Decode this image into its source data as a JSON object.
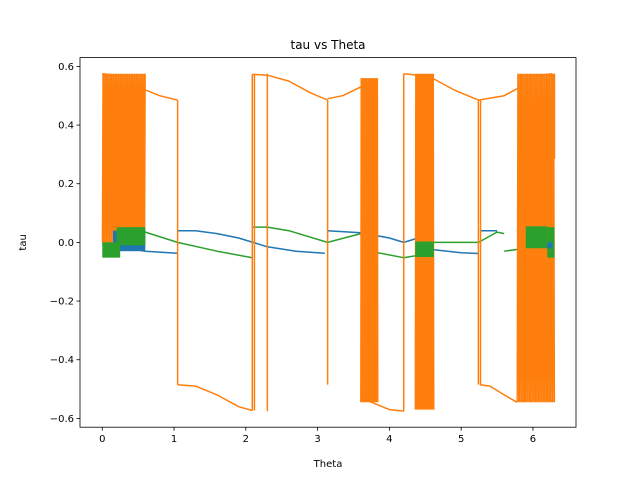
{
  "chart_data": {
    "type": "line",
    "title": "tau vs Theta",
    "xlabel": "Theta",
    "ylabel": "tau",
    "xlim": [
      -0.31,
      6.6
    ],
    "ylim": [
      -0.63,
      0.63
    ],
    "grid": false,
    "legend": "none",
    "xticks": [
      0,
      1,
      2,
      3,
      4,
      5,
      6
    ],
    "xtick_labels": [
      "0",
      "1",
      "2",
      "3",
      "4",
      "5",
      "6"
    ],
    "yticks": [
      -0.6,
      -0.4,
      -0.2,
      0.0,
      0.2,
      0.4,
      0.6
    ],
    "ytick_labels": [
      "−0.6",
      "−0.4",
      "−0.2",
      "0.0",
      "0.2",
      "0.4",
      "0.6"
    ],
    "series": [
      {
        "color": "#1f77b4",
        "segments": [
          [
            [
              0.0,
              -0.005
            ],
            [
              0.6,
              -0.03
            ],
            [
              1.05,
              -0.037
            ]
          ],
          [
            [
              1.05,
              0.04
            ],
            [
              1.3,
              0.04
            ],
            [
              1.6,
              0.03
            ],
            [
              1.9,
              0.015
            ],
            [
              2.1,
              0.0
            ],
            [
              2.3,
              -0.015
            ],
            [
              2.7,
              -0.03
            ],
            [
              3.1,
              -0.037
            ]
          ],
          [
            [
              3.14,
              0.04
            ],
            [
              3.6,
              0.033
            ],
            [
              4.0,
              0.015
            ],
            [
              4.2,
              0.0
            ],
            [
              4.4,
              0.015
            ],
            [
              4.6,
              0.03
            ]
          ],
          [
            [
              4.62,
              -0.025
            ],
            [
              5.0,
              -0.035
            ],
            [
              5.24,
              -0.038
            ]
          ],
          [
            [
              5.26,
              0.04
            ],
            [
              5.5,
              0.04
            ]
          ],
          [
            [
              5.9,
              -0.01
            ],
            [
              6.27,
              -0.02
            ]
          ]
        ]
      },
      {
        "color": "#2ca02c",
        "segments": [
          [
            [
              0.0,
              0.0
            ],
            [
              0.15,
              0.0
            ],
            [
              0.6,
              0.035
            ],
            [
              1.05,
              0.0
            ],
            [
              1.6,
              -0.03
            ],
            [
              2.09,
              -0.052
            ]
          ],
          [
            [
              2.09,
              0.052
            ],
            [
              2.3,
              0.052
            ],
            [
              2.6,
              0.04
            ],
            [
              3.14,
              0.0
            ],
            [
              3.6,
              0.03
            ]
          ],
          [
            [
              3.62,
              -0.025
            ],
            [
              4.2,
              -0.052
            ],
            [
              4.62,
              -0.035
            ]
          ],
          [
            [
              4.62,
              0.0
            ],
            [
              5.24,
              0.0
            ],
            [
              5.5,
              0.035
            ],
            [
              5.6,
              0.03
            ]
          ],
          [
            [
              5.6,
              -0.03
            ],
            [
              5.9,
              -0.02
            ],
            [
              6.27,
              0.0
            ]
          ]
        ]
      },
      {
        "color": "#ff7f0e",
        "segments": [
          [
            [
              0.0,
              0.575
            ],
            [
              0.2,
              0.57
            ],
            [
              0.4,
              0.55
            ],
            [
              0.6,
              0.52
            ],
            [
              0.8,
              0.5
            ],
            [
              1.05,
              0.485
            ]
          ],
          [
            [
              1.05,
              -0.485
            ],
            [
              1.3,
              -0.49
            ],
            [
              1.6,
              -0.52
            ],
            [
              1.9,
              -0.56
            ],
            [
              2.09,
              -0.573
            ]
          ],
          [
            [
              2.09,
              0.573
            ],
            [
              2.3,
              0.57
            ],
            [
              2.6,
              0.55
            ],
            [
              2.9,
              0.51
            ],
            [
              3.14,
              0.485
            ]
          ],
          [
            [
              3.14,
              0.49
            ],
            [
              3.35,
              0.5
            ],
            [
              3.6,
              0.53
            ]
          ],
          [
            [
              3.6,
              -0.53
            ],
            [
              3.8,
              -0.55
            ],
            [
              4.0,
              -0.57
            ],
            [
              4.2,
              -0.575
            ]
          ],
          [
            [
              4.2,
              0.575
            ],
            [
              4.4,
              0.57
            ],
            [
              4.6,
              0.56
            ],
            [
              4.9,
              0.52
            ],
            [
              5.24,
              0.485
            ]
          ],
          [
            [
              5.26,
              -0.485
            ],
            [
              5.4,
              -0.49
            ],
            [
              5.6,
              -0.52
            ],
            [
              5.78,
              -0.545
            ]
          ],
          [
            [
              5.24,
              0.485
            ],
            [
              5.6,
              0.5
            ],
            [
              5.9,
              0.54
            ],
            [
              6.1,
              0.57
            ],
            [
              6.27,
              0.575
            ]
          ]
        ],
        "vertical_lines": [
          [
            1.05,
            -0.485,
            0.485
          ],
          [
            2.09,
            -0.573,
            0.573
          ],
          [
            2.12,
            -0.573,
            0.573
          ],
          [
            2.3,
            -0.575,
            0.575
          ],
          [
            3.14,
            -0.485,
            0.485
          ],
          [
            4.2,
            -0.575,
            0.575
          ],
          [
            5.24,
            -0.485,
            0.485
          ],
          [
            5.27,
            -0.485,
            0.485
          ],
          [
            6.3,
            0.285,
            0.575
          ]
        ],
        "oscillation_bands": [
          [
            0.0,
            0.6,
            0.0,
            0.575
          ],
          [
            3.6,
            3.84,
            -0.545,
            0.56
          ],
          [
            4.36,
            4.62,
            -0.57,
            0.575
          ],
          [
            5.78,
            6.3,
            -0.545,
            0.575
          ]
        ]
      }
    ],
    "dense_bands": [
      {
        "color": "#1f77b4",
        "x0": 0.15,
        "x1": 0.6,
        "y0": -0.03,
        "y1": 0.04
      },
      {
        "color": "#2ca02c",
        "x0": 0.0,
        "x1": 0.25,
        "y0": -0.052,
        "y1": 0.0
      },
      {
        "color": "#2ca02c",
        "x0": 0.2,
        "x1": 0.6,
        "y0": -0.01,
        "y1": 0.052
      },
      {
        "color": "#2ca02c",
        "x0": 4.36,
        "x1": 4.62,
        "y0": -0.05,
        "y1": 0.003
      },
      {
        "color": "#2ca02c",
        "x0": 5.9,
        "x1": 6.2,
        "y0": -0.02,
        "y1": 0.055
      },
      {
        "color": "#2ca02c",
        "x0": 6.2,
        "x1": 6.3,
        "y0": -0.052,
        "y1": 0.052
      },
      {
        "color": "#1f77b4",
        "x0": 6.2,
        "x1": 6.27,
        "y0": -0.02,
        "y1": 0.0
      }
    ]
  }
}
